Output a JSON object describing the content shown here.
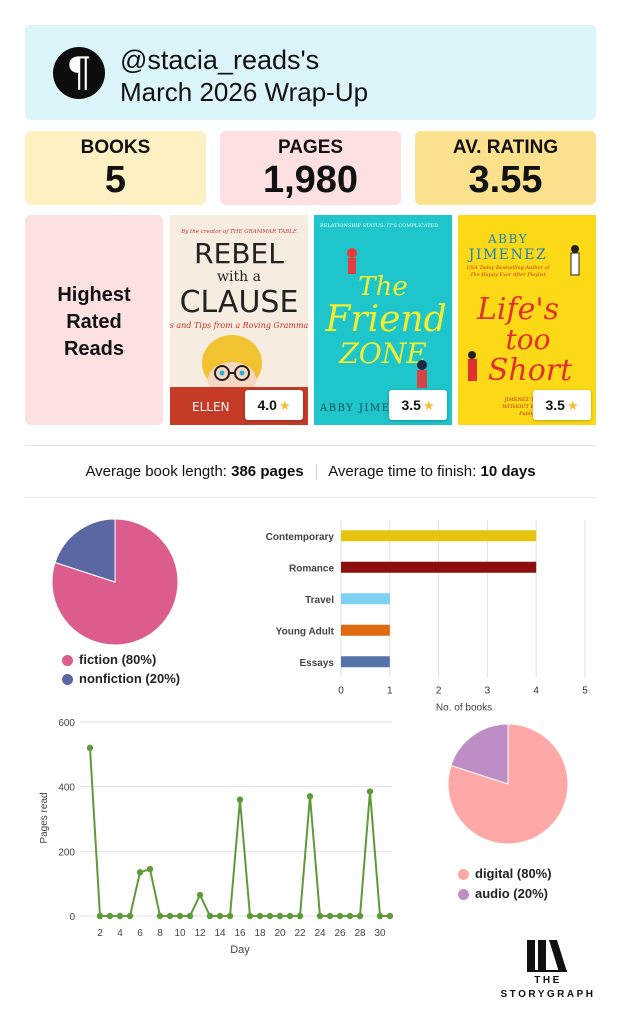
{
  "header": {
    "username": "@stacia_reads's",
    "title": "March 2026 Wrap-Up",
    "logo_glyph": "¶"
  },
  "stats": {
    "books_label": "BOOKS",
    "books_value": "5",
    "pages_label": "PAGES",
    "pages_value": "1,980",
    "rating_label": "AV. RATING",
    "rating_value": "3.55"
  },
  "highest_rated": {
    "label_line1": "Highest",
    "label_line2": "Rated",
    "label_line3": "Reads",
    "books": [
      {
        "rating": "4.0",
        "cover": {
          "top_line": "By the creator of THE GRAMMAR TABLE",
          "title_l1": "REBEL",
          "title_l2": "with a",
          "title_l3": "CLAUSE",
          "subtitle": "s and Tips from a Roving Gramma",
          "author": "ELLEN"
        }
      },
      {
        "rating": "3.5",
        "cover": {
          "top_line": "RELATIONSHIP STATUS: IT'S COMPLICATED",
          "title_l1": "The",
          "title_l2": "Friend",
          "title_l3": "ZONE",
          "author": "ABBY JIMES"
        }
      },
      {
        "rating": "3.5",
        "cover": {
          "author_l1": "ABBY",
          "author_l2": "JIMENEZ",
          "blurb_l1": "USA Today Bestselling Author of",
          "blurb_l2": "The Happy Ever After Playlist",
          "title_l1": "Life's",
          "title_l2": "too",
          "title_l3": "Short",
          "quote_l1": "JIMENEZ TACKLES",
          "quote_l2": "WITHOUT EVER LOS",
          "quote_l3": "Publishe"
        }
      }
    ],
    "star_icon": "star-icon"
  },
  "averages": {
    "length_label": "Average book length:",
    "length_value": "386 pages",
    "time_label": "Average time to finish:",
    "time_value": "10 days"
  },
  "colors": {
    "fiction": "#dc5c8d",
    "nonfiction": "#5a67a3",
    "digital": "#ffa8a8",
    "audio": "#bf8dc6",
    "line": "#5f9a3a"
  },
  "chart_data": [
    {
      "type": "pie",
      "labels": [
        "fiction (80%)",
        "nonfiction (20%)"
      ],
      "values": [
        80,
        20
      ]
    },
    {
      "type": "bar",
      "orientation": "horizontal",
      "categories": [
        "Contemporary",
        "Romance",
        "Travel",
        "Young Adult",
        "Essays"
      ],
      "values": [
        4,
        4,
        1,
        1,
        1
      ],
      "colors": [
        "#e6c40e",
        "#8c0f0f",
        "#7fd1f2",
        "#e06a0f",
        "#5574a8"
      ],
      "xlabel": "No. of books",
      "xlim": [
        0,
        5
      ],
      "xticks": [
        "0",
        "1",
        "2",
        "3",
        "4",
        "5"
      ],
      "grid": true
    },
    {
      "type": "line",
      "x": [
        1,
        2,
        3,
        4,
        5,
        6,
        7,
        8,
        9,
        10,
        11,
        12,
        13,
        14,
        15,
        16,
        17,
        18,
        19,
        20,
        21,
        22,
        23,
        24,
        25,
        26,
        27,
        28,
        29,
        30,
        31
      ],
      "y": [
        520,
        0,
        0,
        0,
        0,
        135,
        145,
        0,
        0,
        0,
        0,
        65,
        0,
        0,
        0,
        360,
        0,
        0,
        0,
        0,
        0,
        0,
        370,
        0,
        0,
        0,
        0,
        0,
        385,
        0,
        0
      ],
      "xlabel": "Day",
      "ylabel": "Pages read",
      "ylim": [
        0,
        600
      ],
      "yticks": [
        "0",
        "200",
        "400",
        "600"
      ],
      "xticks": [
        "2",
        "4",
        "6",
        "8",
        "10",
        "12",
        "14",
        "16",
        "18",
        "20",
        "22",
        "24",
        "26",
        "28",
        "30"
      ],
      "grid": true
    },
    {
      "type": "pie",
      "labels": [
        "digital (80%)",
        "audio (20%)"
      ],
      "values": [
        80,
        20
      ]
    }
  ],
  "footer": {
    "brand_l1": "THE",
    "brand_l2": "STORYGRAPH"
  }
}
